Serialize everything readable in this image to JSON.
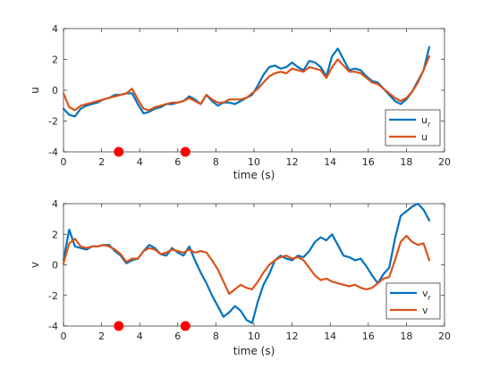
{
  "chart_data": [
    {
      "type": "line",
      "xlabel": "time (s)",
      "ylabel": "u",
      "xlim": [
        0,
        20
      ],
      "ylim": [
        -4,
        4
      ],
      "xticks": [
        0,
        2,
        4,
        6,
        8,
        10,
        12,
        14,
        16,
        18,
        20
      ],
      "yticks": [
        -4,
        -2,
        0,
        2,
        4
      ],
      "grid": false,
      "legend": "bottom-right",
      "series": [
        {
          "name": "u_r",
          "legend_base": "u",
          "legend_sub": "r",
          "color": "#0072BD",
          "x": [
            0,
            0.3,
            0.6,
            0.9,
            1.2,
            1.5,
            1.8,
            2.1,
            2.4,
            2.7,
            3.0,
            3.3,
            3.6,
            3.9,
            4.2,
            4.5,
            4.8,
            5.1,
            5.4,
            5.7,
            6.0,
            6.3,
            6.6,
            6.9,
            7.2,
            7.5,
            7.8,
            8.1,
            8.4,
            8.7,
            9.0,
            9.3,
            9.6,
            9.9,
            10.2,
            10.5,
            10.8,
            11.1,
            11.4,
            11.7,
            12.0,
            12.3,
            12.6,
            12.9,
            13.2,
            13.5,
            13.8,
            14.1,
            14.4,
            14.7,
            15.0,
            15.3,
            15.6,
            15.9,
            16.2,
            16.5,
            16.8,
            17.1,
            17.4,
            17.7,
            18.0,
            18.3,
            18.6,
            18.9,
            19.2
          ],
          "y": [
            -1.2,
            -1.6,
            -1.7,
            -1.2,
            -1.0,
            -0.9,
            -0.8,
            -0.6,
            -0.5,
            -0.3,
            -0.3,
            -0.2,
            -0.2,
            -0.9,
            -1.5,
            -1.4,
            -1.2,
            -1.1,
            -0.9,
            -0.9,
            -0.8,
            -0.7,
            -0.4,
            -0.6,
            -0.9,
            -0.3,
            -0.7,
            -1.0,
            -0.8,
            -0.8,
            -0.9,
            -0.7,
            -0.5,
            -0.3,
            0.3,
            1.0,
            1.5,
            1.6,
            1.4,
            1.5,
            1.8,
            1.5,
            1.3,
            1.9,
            1.8,
            1.5,
            0.9,
            2.2,
            2.7,
            2.0,
            1.3,
            1.4,
            1.3,
            0.9,
            0.6,
            0.5,
            0.1,
            -0.3,
            -0.7,
            -0.9,
            -0.6,
            -0.1,
            0.6,
            1.3,
            2.8
          ]
        },
        {
          "name": "u",
          "legend_base": "u",
          "legend_sub": "",
          "color": "#D95319",
          "x": [
            0,
            0.3,
            0.6,
            0.9,
            1.2,
            1.5,
            1.8,
            2.1,
            2.4,
            2.7,
            3.0,
            3.3,
            3.6,
            3.9,
            4.2,
            4.5,
            4.8,
            5.1,
            5.4,
            5.7,
            6.0,
            6.3,
            6.6,
            6.9,
            7.2,
            7.5,
            7.8,
            8.1,
            8.4,
            8.7,
            9.0,
            9.3,
            9.6,
            9.9,
            10.2,
            10.5,
            10.8,
            11.1,
            11.4,
            11.7,
            12.0,
            12.3,
            12.6,
            12.9,
            13.2,
            13.5,
            13.8,
            14.1,
            14.4,
            14.7,
            15.0,
            15.3,
            15.6,
            15.9,
            16.2,
            16.5,
            16.8,
            17.1,
            17.4,
            17.7,
            18.0,
            18.3,
            18.6,
            18.9,
            19.2
          ],
          "y": [
            -0.2,
            -1.1,
            -1.3,
            -1.0,
            -0.9,
            -0.8,
            -0.7,
            -0.6,
            -0.5,
            -0.4,
            -0.3,
            -0.2,
            0.1,
            -0.6,
            -1.2,
            -1.3,
            -1.1,
            -1.0,
            -0.9,
            -0.8,
            -0.8,
            -0.7,
            -0.5,
            -0.7,
            -0.9,
            -0.3,
            -0.6,
            -0.8,
            -0.8,
            -0.6,
            -0.6,
            -0.6,
            -0.5,
            -0.2,
            0.1,
            0.5,
            0.9,
            1.1,
            1.2,
            1.1,
            1.4,
            1.3,
            1.2,
            1.5,
            1.4,
            1.3,
            0.8,
            1.5,
            2.0,
            1.6,
            1.2,
            1.2,
            1.1,
            0.8,
            0.5,
            0.4,
            0.1,
            -0.2,
            -0.5,
            -0.7,
            -0.5,
            -0.1,
            0.5,
            1.3,
            2.2
          ]
        }
      ],
      "markers": {
        "color": "#FF0000",
        "points": [
          {
            "x": 2.9,
            "y": -4
          },
          {
            "x": 6.4,
            "y": -4
          }
        ]
      }
    },
    {
      "type": "line",
      "xlabel": "time (s)",
      "ylabel": "v",
      "xlim": [
        0,
        20
      ],
      "ylim": [
        -4,
        4
      ],
      "xticks": [
        0,
        2,
        4,
        6,
        8,
        10,
        12,
        14,
        16,
        18,
        20
      ],
      "yticks": [
        -4,
        -2,
        0,
        2,
        4
      ],
      "grid": false,
      "legend": "bottom-right",
      "series": [
        {
          "name": "v_r",
          "legend_base": "v",
          "legend_sub": "r",
          "color": "#0072BD",
          "x": [
            0,
            0.3,
            0.6,
            0.9,
            1.2,
            1.5,
            1.8,
            2.1,
            2.4,
            2.7,
            3.0,
            3.3,
            3.6,
            3.9,
            4.2,
            4.5,
            4.8,
            5.1,
            5.4,
            5.7,
            6.0,
            6.3,
            6.6,
            6.9,
            7.2,
            7.5,
            7.8,
            8.1,
            8.4,
            8.7,
            9.0,
            9.3,
            9.6,
            9.9,
            10.2,
            10.5,
            10.8,
            11.1,
            11.4,
            11.7,
            12.0,
            12.3,
            12.6,
            12.9,
            13.2,
            13.5,
            13.8,
            14.1,
            14.4,
            14.7,
            15.0,
            15.3,
            15.6,
            15.9,
            16.2,
            16.5,
            16.8,
            17.1,
            17.4,
            17.7,
            18.0,
            18.3,
            18.6,
            18.9,
            19.2
          ],
          "y": [
            0.3,
            2.3,
            1.2,
            1.1,
            1.0,
            1.2,
            1.2,
            1.3,
            1.3,
            0.9,
            0.6,
            0.1,
            0.3,
            0.4,
            0.9,
            1.3,
            1.1,
            0.7,
            0.6,
            1.1,
            0.8,
            0.6,
            1.2,
            0.3,
            -0.5,
            -1.2,
            -2.0,
            -2.7,
            -3.4,
            -3.1,
            -2.7,
            -3.0,
            -3.6,
            -3.8,
            -2.4,
            -1.3,
            -0.6,
            0.3,
            0.6,
            0.4,
            0.3,
            0.6,
            0.5,
            0.9,
            1.5,
            1.8,
            1.6,
            2.0,
            1.3,
            0.6,
            0.5,
            0.3,
            0.4,
            -0.1,
            -0.7,
            -1.2,
            -0.6,
            -0.2,
            1.7,
            3.2,
            3.5,
            3.8,
            4.0,
            3.6,
            2.9
          ]
        },
        {
          "name": "v",
          "legend_base": "v",
          "legend_sub": "",
          "color": "#D95319",
          "x": [
            0,
            0.3,
            0.6,
            0.9,
            1.2,
            1.5,
            1.8,
            2.1,
            2.4,
            2.7,
            3.0,
            3.3,
            3.6,
            3.9,
            4.2,
            4.5,
            4.8,
            5.1,
            5.4,
            5.7,
            6.0,
            6.3,
            6.6,
            6.9,
            7.2,
            7.5,
            7.8,
            8.1,
            8.4,
            8.7,
            9.0,
            9.3,
            9.6,
            9.9,
            10.2,
            10.5,
            10.8,
            11.1,
            11.4,
            11.7,
            12.0,
            12.3,
            12.6,
            12.9,
            13.2,
            13.5,
            13.8,
            14.1,
            14.4,
            14.7,
            15.0,
            15.3,
            15.6,
            15.9,
            16.2,
            16.5,
            16.8,
            17.1,
            17.4,
            17.7,
            18.0,
            18.3,
            18.6,
            18.9,
            19.2
          ],
          "y": [
            0.1,
            1.4,
            1.7,
            1.2,
            1.1,
            1.2,
            1.2,
            1.3,
            1.2,
            1.0,
            0.7,
            0.2,
            0.4,
            0.4,
            0.9,
            1.1,
            1.0,
            0.7,
            0.8,
            1.0,
            0.9,
            0.8,
            1.0,
            0.8,
            0.9,
            0.8,
            0.3,
            -0.3,
            -1.1,
            -1.9,
            -1.6,
            -1.3,
            -1.5,
            -1.6,
            -1.1,
            -0.5,
            0.0,
            0.3,
            0.5,
            0.6,
            0.4,
            0.5,
            0.3,
            -0.2,
            -0.7,
            -1.0,
            -0.9,
            -1.1,
            -1.2,
            -1.3,
            -1.4,
            -1.3,
            -1.5,
            -1.6,
            -1.5,
            -1.2,
            -0.9,
            -0.8,
            0.3,
            1.5,
            1.9,
            1.5,
            1.3,
            1.4,
            0.3
          ]
        }
      ],
      "markers": {
        "color": "#FF0000",
        "points": [
          {
            "x": 2.9,
            "y": -4
          },
          {
            "x": 6.4,
            "y": -4
          }
        ]
      }
    }
  ]
}
